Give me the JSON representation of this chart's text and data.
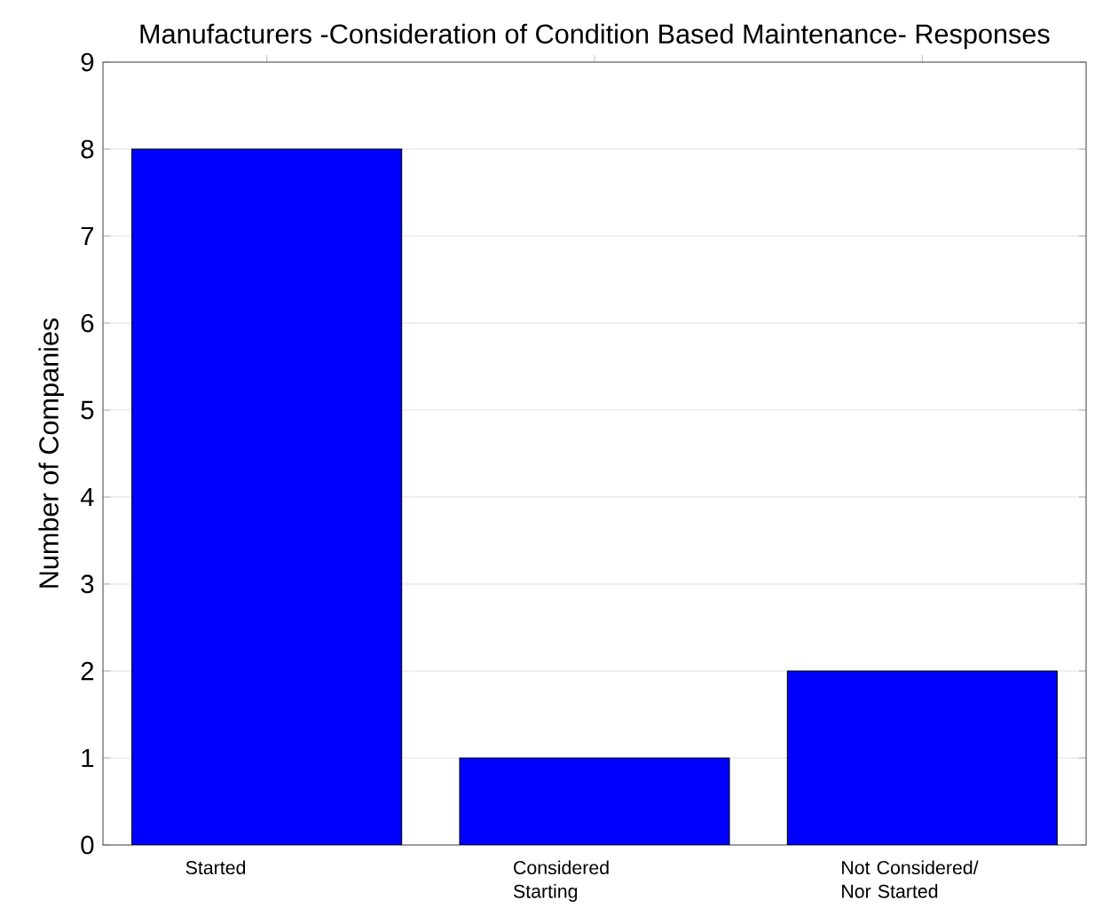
{
  "chart_data": {
    "type": "bar",
    "title": "Manufacturers -Consideration of Condition Based Maintenance- Responses",
    "ylabel": "Number of Companies",
    "categories": [
      "Started",
      "Considered Starting",
      "Not Considered/ Nor Started"
    ],
    "values": [
      8,
      1,
      2
    ],
    "color": "#0000ff",
    "ylim": [
      0,
      9
    ],
    "yticks": [
      0,
      1,
      2,
      3,
      4,
      5,
      6,
      7,
      8,
      9
    ],
    "grid": "y"
  }
}
